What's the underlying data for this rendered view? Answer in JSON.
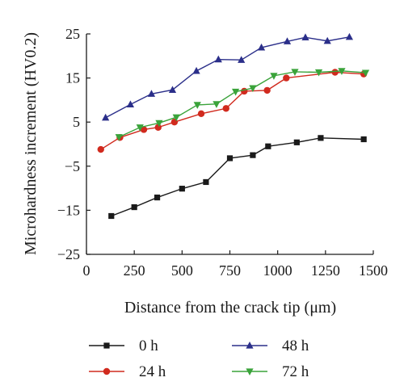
{
  "chart_data": {
    "type": "line",
    "xlabel": "Distance from the crack tip (μm)",
    "ylabel": "Microhardness increment (HV0.2)",
    "xlim": [
      0,
      1500
    ],
    "ylim": [
      -25,
      25
    ],
    "xticks": [
      0,
      250,
      500,
      750,
      1000,
      1250,
      1500
    ],
    "yticks": [
      -25,
      -15,
      -5,
      5,
      15,
      25
    ],
    "xtick_labels": [
      "0",
      "250",
      "500",
      "750",
      "1000",
      "1250",
      "1500"
    ],
    "ytick_labels": [
      "−25",
      "−15",
      "−5",
      "5",
      "15",
      "25"
    ],
    "legend_placement": "bottom",
    "grid": false,
    "series": [
      {
        "name": "0 h",
        "color": "#1a1a1a",
        "marker": "square",
        "x": [
          130,
          250,
          370,
          500,
          625,
          750,
          870,
          950,
          1100,
          1225,
          1450
        ],
        "y": [
          -16.3,
          -14.3,
          -12.1,
          -10.1,
          -8.6,
          -3.2,
          -2.5,
          -0.5,
          0.4,
          1.4,
          1.1
        ]
      },
      {
        "name": "24 h",
        "color": "#d12a1e",
        "marker": "circle",
        "x": [
          75,
          175,
          300,
          375,
          460,
          600,
          730,
          825,
          945,
          1045,
          1300,
          1450
        ],
        "y": [
          -1.2,
          1.5,
          3.3,
          3.8,
          5.0,
          6.9,
          8.1,
          12.0,
          12.2,
          15.0,
          16.3,
          15.9
        ]
      },
      {
        "name": "48 h",
        "color": "#2b2f8a",
        "marker": "triangle-up",
        "x": [
          100,
          230,
          340,
          450,
          575,
          690,
          810,
          915,
          1050,
          1145,
          1260,
          1375
        ],
        "y": [
          6.0,
          9.0,
          11.4,
          12.3,
          16.6,
          19.2,
          19.1,
          21.9,
          23.3,
          24.2,
          23.4,
          24.3
        ]
      },
      {
        "name": "72 h",
        "color": "#3aa33a",
        "marker": "triangle-down",
        "x": [
          170,
          280,
          380,
          470,
          580,
          680,
          780,
          870,
          980,
          1090,
          1215,
          1335,
          1460
        ],
        "y": [
          1.6,
          3.8,
          4.8,
          6.1,
          8.9,
          9.1,
          11.9,
          12.7,
          15.5,
          16.4,
          16.3,
          16.6,
          16.2
        ]
      }
    ]
  }
}
